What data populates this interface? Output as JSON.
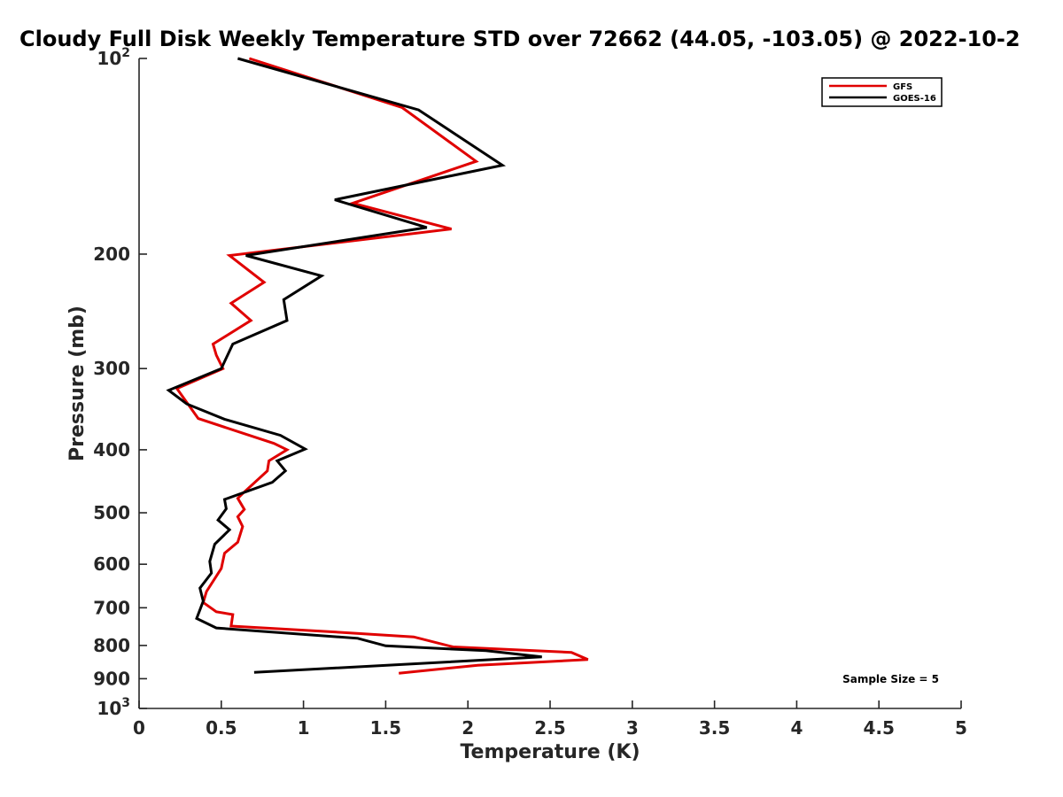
{
  "chart_data": {
    "type": "line",
    "title": "Cloudy Full Disk Weekly Temperature STD over 72662 (44.05, -103.05) @ 2022-10-2",
    "xlabel": "Temperature (K)",
    "ylabel": "Pressure (mb)",
    "xlim": [
      0,
      5
    ],
    "ylim": [
      100,
      1000
    ],
    "y_scale": "log",
    "y_reversed": true,
    "grid": false,
    "legend_position": "top-right",
    "x_ticks": [
      0,
      0.5,
      1,
      1.5,
      2,
      2.5,
      3,
      3.5,
      4,
      4.5,
      5
    ],
    "x_tick_labels": [
      "0",
      "0.5",
      "1",
      "1.5",
      "2",
      "2.5",
      "3",
      "3.5",
      "4",
      "4.5",
      "5"
    ],
    "y_ticks": [
      {
        "value": 100,
        "base": "10",
        "exp": "2"
      },
      {
        "value": 200,
        "label": "200"
      },
      {
        "value": 300,
        "label": "300"
      },
      {
        "value": 400,
        "label": "400"
      },
      {
        "value": 500,
        "label": "500"
      },
      {
        "value": 600,
        "label": "600"
      },
      {
        "value": 700,
        "label": "700"
      },
      {
        "value": 800,
        "label": "800"
      },
      {
        "value": 900,
        "label": "900"
      },
      {
        "value": 1000,
        "base": "10",
        "exp": "3"
      }
    ],
    "series": [
      {
        "name": "GFS",
        "color": "#e00000",
        "points": [
          [
            0.67,
            100
          ],
          [
            1.6,
            119
          ],
          [
            2.05,
            144
          ],
          [
            1.3,
            167
          ],
          [
            1.9,
            183
          ],
          [
            0.55,
            201
          ],
          [
            0.76,
            221
          ],
          [
            0.56,
            238
          ],
          [
            0.68,
            253
          ],
          [
            0.45,
            275
          ],
          [
            0.47,
            286
          ],
          [
            0.51,
            300
          ],
          [
            0.23,
            322
          ],
          [
            0.36,
            358
          ],
          [
            0.82,
            391
          ],
          [
            0.9,
            400
          ],
          [
            0.79,
            416
          ],
          [
            0.78,
            431
          ],
          [
            0.63,
            467
          ],
          [
            0.6,
            475
          ],
          [
            0.64,
            494
          ],
          [
            0.6,
            507
          ],
          [
            0.63,
            525
          ],
          [
            0.6,
            555
          ],
          [
            0.52,
            577
          ],
          [
            0.5,
            609
          ],
          [
            0.41,
            661
          ],
          [
            0.39,
            687
          ],
          [
            0.47,
            710
          ],
          [
            0.57,
            717
          ],
          [
            0.56,
            747
          ],
          [
            1.2,
            763
          ],
          [
            1.67,
            776
          ],
          [
            1.91,
            804
          ],
          [
            2.63,
            820
          ],
          [
            2.73,
            841
          ],
          [
            2.06,
            858
          ],
          [
            1.58,
            883
          ]
        ]
      },
      {
        "name": "GOES-16",
        "color": "#000000",
        "points": [
          [
            0.6,
            100
          ],
          [
            1.7,
            120
          ],
          [
            2.21,
            146
          ],
          [
            1.19,
            165
          ],
          [
            1.75,
            182
          ],
          [
            0.65,
            201
          ],
          [
            1.11,
            216
          ],
          [
            0.88,
            235
          ],
          [
            0.9,
            253
          ],
          [
            0.57,
            275
          ],
          [
            0.5,
            300
          ],
          [
            0.18,
            324
          ],
          [
            0.29,
            340
          ],
          [
            0.52,
            359
          ],
          [
            0.86,
            380
          ],
          [
            1.01,
            399
          ],
          [
            0.84,
            416
          ],
          [
            0.89,
            431
          ],
          [
            0.81,
            449
          ],
          [
            0.52,
            477
          ],
          [
            0.53,
            493
          ],
          [
            0.48,
            513
          ],
          [
            0.55,
            531
          ],
          [
            0.46,
            559
          ],
          [
            0.43,
            594
          ],
          [
            0.44,
            619
          ],
          [
            0.37,
            653
          ],
          [
            0.39,
            684
          ],
          [
            0.35,
            727
          ],
          [
            0.47,
            752
          ],
          [
            1.33,
            780
          ],
          [
            1.5,
            801
          ],
          [
            2.11,
            815
          ],
          [
            2.45,
            833
          ],
          [
            0.7,
            880
          ]
        ]
      }
    ],
    "annotation": "Sample Size = 5"
  }
}
